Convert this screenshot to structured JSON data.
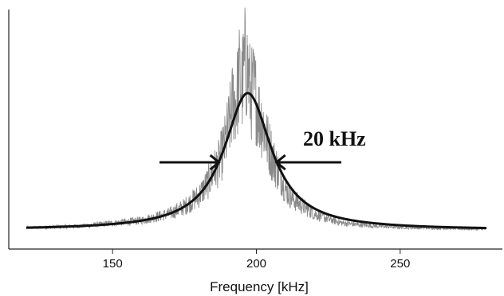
{
  "chart_data": {
    "type": "line",
    "title": "",
    "xlabel": "Frequency [kHz]",
    "ylabel": "",
    "xlim": [
      120,
      280
    ],
    "ylim": [
      0,
      1.2
    ],
    "xticks": [
      150,
      200,
      250
    ],
    "grid": false,
    "series": [
      {
        "style": "noisy-measured",
        "color": "#8a8a8a",
        "center": 197,
        "fwhm": 20,
        "x": [
          120,
          140,
          160,
          170,
          175,
          180,
          183,
          185,
          187,
          189,
          190,
          191,
          192,
          193,
          194,
          195,
          196,
          197,
          198,
          199,
          200,
          201,
          202,
          203,
          204,
          205,
          206,
          207,
          208,
          209,
          210,
          212,
          215,
          220,
          225,
          230,
          240,
          250,
          260,
          270,
          280
        ],
        "y": [
          0.015,
          0.03,
          0.07,
          0.12,
          0.17,
          0.25,
          0.34,
          0.42,
          0.49,
          0.62,
          0.72,
          0.82,
          0.96,
          0.93,
          1.12,
          1.05,
          1.22,
          1.17,
          0.98,
          1.03,
          0.95,
          0.84,
          0.79,
          0.72,
          0.63,
          0.58,
          0.5,
          0.46,
          0.4,
          0.38,
          0.3,
          0.24,
          0.19,
          0.12,
          0.08,
          0.05,
          0.03,
          0.02,
          0.015,
          0.01,
          0.005
        ]
      },
      {
        "style": "lorentzian-fit",
        "color": "#111111",
        "center": 197,
        "fwhm": 20,
        "x": [
          120,
          130,
          140,
          150,
          160,
          165,
          170,
          175,
          180,
          183,
          186,
          188,
          190,
          192,
          194,
          196,
          197,
          198,
          200,
          202,
          204,
          206,
          208,
          210,
          213,
          216,
          220,
          225,
          230,
          240,
          250,
          260,
          270,
          280
        ],
        "y": [
          0.016,
          0.021,
          0.03,
          0.043,
          0.068,
          0.089,
          0.121,
          0.171,
          0.257,
          0.338,
          0.452,
          0.552,
          0.671,
          0.8,
          0.917,
          0.99,
          1.0,
          0.99,
          0.917,
          0.8,
          0.671,
          0.552,
          0.452,
          0.371,
          0.281,
          0.217,
          0.156,
          0.109,
          0.084,
          0.051,
          0.034,
          0.025,
          0.018,
          0.015
        ]
      }
    ],
    "annotations": [
      {
        "text": "20 kHz",
        "type": "fwhm-arrows",
        "x_left": 187,
        "x_right": 207,
        "y": 0.5
      }
    ]
  }
}
